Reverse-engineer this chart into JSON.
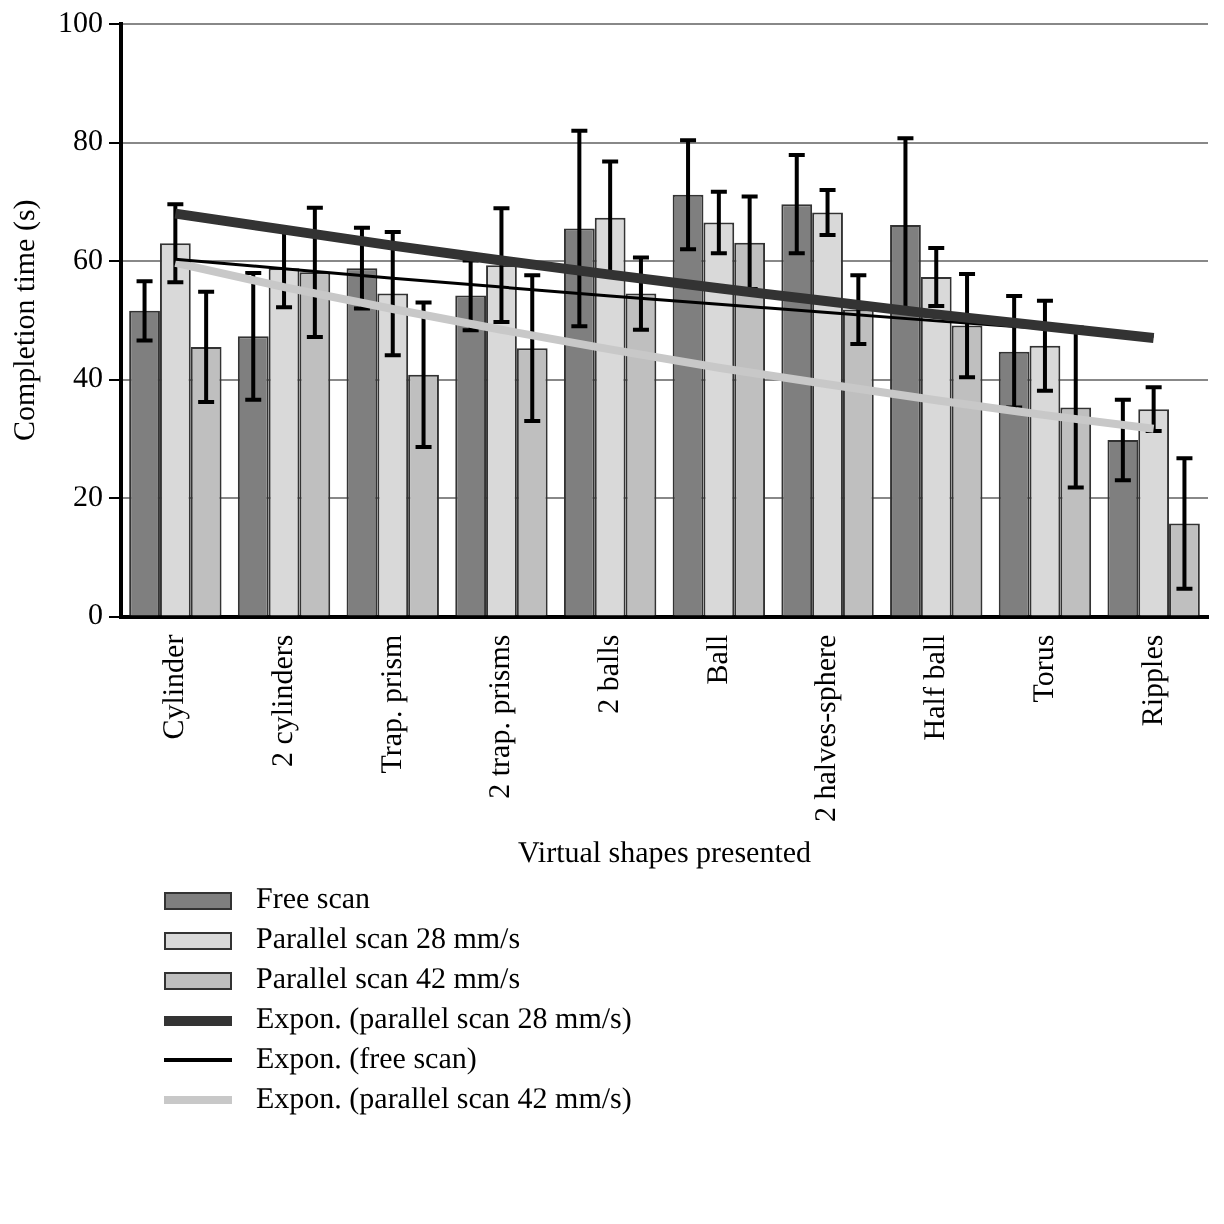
{
  "chart_data": {
    "type": "bar",
    "xlabel": "Virtual shapes presented",
    "ylabel": "Completion time (s)",
    "categories": [
      "Cylinder",
      "2 cylinders",
      "Trap. prism",
      "2 trap. prisms",
      "2 balls",
      "Ball",
      "2 halves-sphere",
      "Half ball",
      "Torus",
      "Ripples"
    ],
    "ylim": [
      0,
      100
    ],
    "yticks": [
      0,
      20,
      40,
      60,
      80,
      100
    ],
    "grid": "y",
    "legend": "bottom",
    "series": [
      {
        "name": "Free scan",
        "color": "#7f7f7f",
        "values": [
          51.6,
          47.3,
          58.8,
          54.2,
          65.5,
          71.2,
          69.6,
          66.1,
          44.7,
          29.8
        ],
        "errors": [
          5,
          10.7,
          6.8,
          5.9,
          16.5,
          9.2,
          8.3,
          14.6,
          9.4,
          6.8
        ]
      },
      {
        "name": "Parallel scan 28 mm/s",
        "color": "#d9d9d9",
        "values": [
          63,
          58.8,
          54.5,
          59.3,
          67.3,
          66.5,
          68.2,
          57.3,
          45.7,
          35
        ],
        "errors": [
          6.6,
          6.6,
          10.4,
          9.6,
          9.5,
          5.2,
          3.8,
          4.9,
          7.6,
          3.7
        ]
      },
      {
        "name": "Parallel scan 42 mm/s",
        "color": "#bfbfbf",
        "values": [
          45.5,
          58.1,
          40.8,
          45.3,
          54.5,
          63.1,
          51.8,
          49.1,
          35.3,
          15.7
        ],
        "errors": [
          9.3,
          10.9,
          12.2,
          12.3,
          6.1,
          7.8,
          5.8,
          8.7,
          13.5,
          11
        ]
      },
      {
        "name": "Expon. (parallel scan 28 mm/s)",
        "type": "line",
        "color": "#333333",
        "values": [
          68,
          65.3,
          62.6,
          60.1,
          57.7,
          55.4,
          53.2,
          51,
          49,
          47
        ]
      },
      {
        "name": "Expon. (free scan)",
        "type": "line",
        "color": "#000000",
        "values": [
          60.3,
          58.7,
          57.1,
          55.6,
          54.1,
          52.7,
          51.3,
          49.9,
          48.6,
          47.3
        ]
      },
      {
        "name": "Expon. (parallel scan 42 mm/s)",
        "type": "line",
        "color": "#c8c8c8",
        "values": [
          59.7,
          55.6,
          51.9,
          48.4,
          45.1,
          42,
          39.2,
          36.5,
          34,
          31.7
        ]
      }
    ]
  }
}
